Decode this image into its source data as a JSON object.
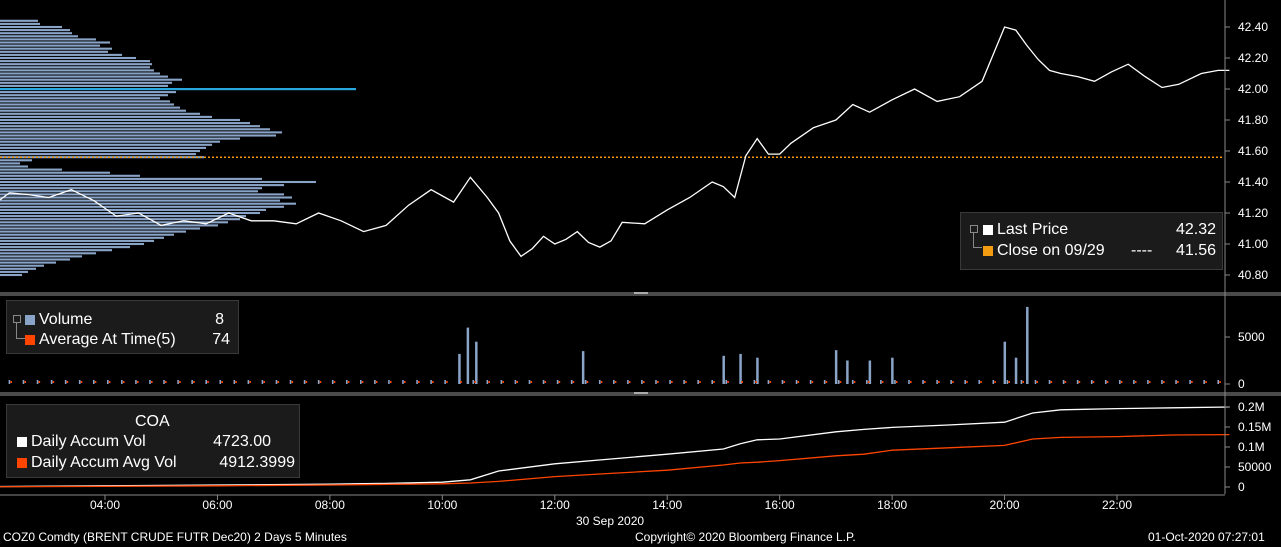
{
  "price_panel": {
    "legend": {
      "last_price_label": "Last Price",
      "last_price_value": "42.32",
      "close_label": "Close on 09/29",
      "close_dashes": "----",
      "close_value": "41.56",
      "last_color": "#ffffff",
      "close_color": "#f39c12"
    }
  },
  "volume_panel": {
    "legend": {
      "volume_label": "Volume",
      "volume_value": "8",
      "avg_label": "Average At Time(5)",
      "avg_value": "74",
      "volume_color": "#8aa4c8",
      "avg_color": "#ff4500"
    }
  },
  "accum_panel": {
    "legend": {
      "header": "COA",
      "accum_label": "Daily Accum Vol",
      "accum_value": "4723.00",
      "avg_label": "Daily Accum Avg Vol",
      "avg_value": "4912.3999",
      "accum_color": "#ffffff",
      "avg_color": "#ff4500"
    }
  },
  "x_axis": {
    "date_label": "30 Sep 2020"
  },
  "footer": {
    "security": "COZ0 Comdty (BRENT CRUDE FUTR  Dec20) 2 Days 5 Minutes",
    "copyright": "Copyright© 2020 Bloomberg Finance L.P.",
    "timestamp": "01-Oct-2020 07:27:01"
  },
  "chart_data": [
    {
      "type": "line",
      "name": "price",
      "ylim": [
        40.7,
        42.5
      ],
      "yticks": [
        "42.40",
        "42.20",
        "42.00",
        "41.80",
        "41.60",
        "41.40",
        "41.20",
        "41.00",
        "40.80"
      ],
      "xlim": [
        2.0,
        24.0
      ],
      "xticks": [
        "04:00",
        "06:00",
        "08:00",
        "10:00",
        "12:00",
        "14:00",
        "16:00",
        "18:00",
        "20:00",
        "22:00"
      ],
      "reference_line": {
        "label": "Close on 09/29",
        "value": 41.56
      },
      "series": [
        {
          "name": "Last Price",
          "x": [
            2.0,
            2.3,
            2.6,
            3.0,
            3.4,
            3.8,
            4.2,
            4.6,
            5.0,
            5.4,
            5.8,
            6.2,
            6.6,
            7.0,
            7.4,
            7.8,
            8.2,
            8.6,
            9.0,
            9.4,
            9.8,
            10.2,
            10.5,
            10.8,
            11.0,
            11.2,
            11.4,
            11.6,
            11.8,
            12.0,
            12.2,
            12.4,
            12.6,
            12.8,
            13.0,
            13.2,
            13.6,
            14.0,
            14.4,
            14.8,
            15.0,
            15.2,
            15.4,
            15.6,
            15.8,
            16.0,
            16.2,
            16.6,
            17.0,
            17.3,
            17.6,
            18.0,
            18.4,
            18.8,
            19.2,
            19.6,
            20.0,
            20.2,
            20.4,
            20.6,
            20.8,
            21.0,
            21.3,
            21.6,
            21.9,
            22.2,
            22.5,
            22.8,
            23.1,
            23.5,
            23.8,
            24.0
          ],
          "y": [
            41.25,
            41.33,
            41.32,
            41.3,
            41.35,
            41.28,
            41.18,
            41.2,
            41.12,
            41.15,
            41.13,
            41.2,
            41.15,
            41.15,
            41.13,
            41.2,
            41.15,
            41.08,
            41.12,
            41.25,
            41.35,
            41.27,
            41.43,
            41.3,
            41.2,
            41.02,
            40.92,
            40.97,
            41.05,
            41.0,
            41.03,
            41.08,
            41.01,
            40.98,
            41.02,
            41.14,
            41.13,
            41.22,
            41.3,
            41.4,
            41.37,
            41.3,
            41.57,
            41.68,
            41.58,
            41.58,
            41.65,
            41.75,
            41.8,
            41.9,
            41.85,
            41.93,
            42.0,
            41.92,
            41.95,
            42.05,
            42.4,
            42.38,
            42.28,
            42.19,
            42.12,
            42.1,
            42.08,
            42.05,
            42.11,
            42.16,
            42.08,
            42.01,
            42.03,
            42.1,
            42.12,
            42.12
          ]
        },
        {
          "name": "Close on 09/29",
          "y_constant": 41.56
        }
      ],
      "volume_profile": {
        "levels": [
          42.44,
          42.42,
          42.4,
          42.38,
          42.36,
          42.34,
          42.32,
          42.3,
          42.28,
          42.26,
          42.24,
          42.22,
          42.2,
          42.18,
          42.16,
          42.14,
          42.12,
          42.1,
          42.08,
          42.06,
          42.04,
          42.02,
          42.0,
          41.98,
          41.96,
          41.94,
          41.92,
          41.9,
          41.88,
          41.86,
          41.84,
          41.82,
          41.8,
          41.78,
          41.76,
          41.74,
          41.72,
          41.7,
          41.68,
          41.66,
          41.64,
          41.62,
          41.6,
          41.58,
          41.56,
          41.54,
          41.52,
          41.5,
          41.48,
          41.46,
          41.44,
          41.42,
          41.4,
          41.38,
          41.36,
          41.34,
          41.32,
          41.3,
          41.28,
          41.26,
          41.24,
          41.22,
          41.2,
          41.18,
          41.16,
          41.14,
          41.12,
          41.1,
          41.08,
          41.06,
          41.04,
          41.02,
          41.0,
          40.98,
          40.96,
          40.94,
          40.92,
          40.9,
          40.88,
          40.86,
          40.84,
          40.82,
          40.8
        ],
        "volumes": [
          38,
          40,
          62,
          70,
          72,
          78,
          96,
          110,
          100,
          112,
          108,
          122,
          136,
          150,
          152,
          150,
          154,
          160,
          168,
          182,
          172,
          168,
          356,
          176,
          168,
          160,
          170,
          174,
          180,
          186,
          200,
          212,
          240,
          250,
          260,
          270,
          282,
          276,
          240,
          220,
          212,
          206,
          200,
          196,
          204,
          32,
          20,
          28,
          62,
          110,
          140,
          262,
          316,
          284,
          262,
          258,
          284,
          292,
          280,
          296,
          284,
          266,
          260,
          246,
          240,
          228,
          218,
          200,
          186,
          174,
          164,
          154,
          144,
          130,
          112,
          96,
          82,
          70,
          56,
          44,
          36,
          28,
          22
        ],
        "highlight_level": 42.0
      }
    },
    {
      "type": "bar",
      "name": "volume",
      "ylim": [
        0,
        8500
      ],
      "yticks": [
        "5000",
        "0"
      ],
      "series": [
        {
          "name": "Volume",
          "x": [
            10.3,
            10.45,
            10.6,
            12.5,
            15.0,
            15.3,
            15.6,
            17.0,
            17.2,
            17.6,
            18.0,
            20.0,
            20.2,
            20.4
          ],
          "y": [
            3200,
            6000,
            4500,
            3500,
            3000,
            3200,
            2800,
            3600,
            2500,
            2500,
            2800,
            4500,
            2800,
            8200
          ]
        },
        {
          "name": "Average At Time(5)",
          "y_typical": 74
        }
      ]
    },
    {
      "type": "line",
      "name": "daily_accum",
      "ylim": [
        0,
        220000
      ],
      "yticks": [
        "0.2M",
        "0.15M",
        "0.1M",
        "50000",
        "0"
      ],
      "series": [
        {
          "name": "Daily Accum Vol",
          "x": [
            2,
            4,
            6,
            8,
            9,
            10,
            10.5,
            11,
            12,
            13,
            14,
            15,
            15.3,
            15.6,
            16,
            17,
            17.5,
            18,
            19,
            20,
            20.5,
            21,
            22,
            23,
            24
          ],
          "y": [
            1000,
            3000,
            5000,
            7000,
            9000,
            12000,
            18000,
            40000,
            58000,
            70000,
            82000,
            95000,
            108000,
            118000,
            120000,
            138000,
            144000,
            149000,
            155000,
            162000,
            185000,
            193000,
            196000,
            198000,
            200000
          ]
        },
        {
          "name": "Daily Accum Avg Vol",
          "x": [
            2,
            4,
            6,
            8,
            9,
            10,
            10.5,
            11,
            12,
            13,
            14,
            15,
            15.3,
            15.6,
            16,
            17,
            17.5,
            18,
            19,
            20,
            20.5,
            21,
            22,
            23,
            24
          ],
          "y": [
            500,
            1500,
            3000,
            5000,
            6500,
            8000,
            10000,
            14000,
            26000,
            34000,
            42000,
            55000,
            60000,
            62000,
            66000,
            78000,
            82000,
            92000,
            98000,
            104000,
            120000,
            124000,
            126000,
            130000,
            131000
          ]
        }
      ]
    }
  ]
}
